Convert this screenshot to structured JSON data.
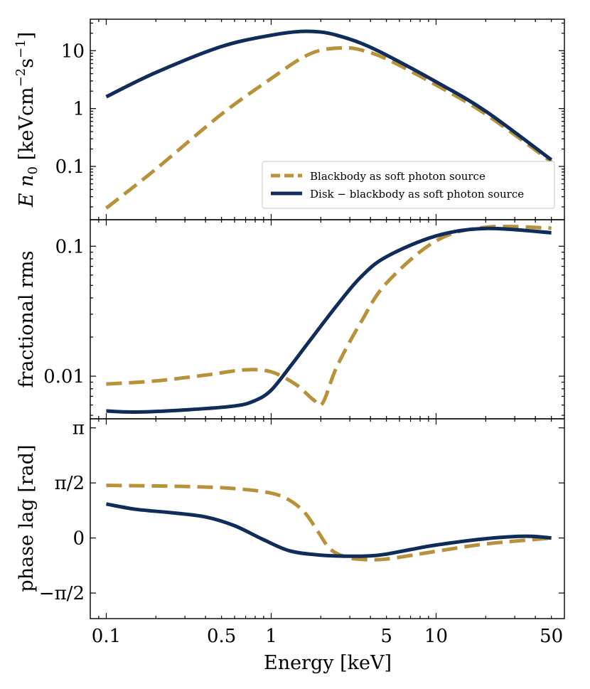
{
  "colors": {
    "blackbody": "#B8923A",
    "disk": "#0F2C5A"
  },
  "chart_data": [
    {
      "type": "line",
      "panel": "top",
      "ylabel": "E n_0 [keV cm^-2 s^-1]",
      "yscale": "log",
      "xscale": "log",
      "xlim": [
        0.08,
        60
      ],
      "ylim": [
        0.012,
        35
      ],
      "yticks": [
        0.1,
        1,
        10
      ],
      "ytick_labels": [
        "0.1",
        "1",
        "10"
      ],
      "legend": {
        "location": "lower-right",
        "entries": [
          "Blackbody as soft photon source",
          "Disk − blackbody as soft photon source"
        ]
      },
      "series": [
        {
          "name": "Blackbody as soft photon source",
          "style": "dashed",
          "x": [
            0.1,
            0.2,
            0.5,
            1,
            1.5,
            2,
            2.8,
            3.5,
            5,
            10,
            20,
            50
          ],
          "y": [
            0.019,
            0.09,
            0.8,
            3.3,
            7.2,
            10.2,
            11.2,
            10.3,
            7.2,
            2.55,
            0.8,
            0.12
          ]
        },
        {
          "name": "Disk − blackbody as soft photon source",
          "style": "solid",
          "x": [
            0.1,
            0.2,
            0.5,
            1,
            1.5,
            2,
            2.5,
            3.5,
            5,
            10,
            20,
            50
          ],
          "y": [
            1.6,
            4.2,
            11.8,
            18.5,
            21.5,
            21,
            18.5,
            13.5,
            8.4,
            2.9,
            0.9,
            0.13
          ]
        }
      ]
    },
    {
      "type": "line",
      "panel": "middle",
      "ylabel": "fractional rms",
      "yscale": "log",
      "xscale": "log",
      "xlim": [
        0.08,
        60
      ],
      "ylim": [
        0.0047,
        0.16
      ],
      "yticks": [
        0.01,
        0.1
      ],
      "ytick_labels": [
        "0.01",
        "0.1"
      ],
      "series": [
        {
          "name": "Blackbody as soft photon source",
          "style": "dashed",
          "x": [
            0.1,
            0.2,
            0.4,
            0.7,
            1,
            1.4,
            1.8,
            2.05,
            2.5,
            3.5,
            5,
            10,
            20,
            50
          ],
          "y": [
            0.0087,
            0.0092,
            0.0102,
            0.0112,
            0.0108,
            0.0087,
            0.0066,
            0.0062,
            0.0118,
            0.026,
            0.052,
            0.11,
            0.14,
            0.138
          ]
        },
        {
          "name": "Disk − blackbody as soft photon source",
          "style": "solid",
          "x": [
            0.1,
            0.15,
            0.3,
            0.6,
            0.8,
            1,
            1.3,
            1.7,
            2.5,
            3.5,
            5,
            10,
            20,
            50
          ],
          "y": [
            0.0054,
            0.0053,
            0.0055,
            0.0059,
            0.0065,
            0.0078,
            0.0118,
            0.0185,
            0.035,
            0.058,
            0.083,
            0.12,
            0.137,
            0.127
          ]
        }
      ]
    },
    {
      "type": "line",
      "panel": "bottom",
      "ylabel": "phase lag [rad]",
      "xlabel": "Energy [keV]",
      "xscale": "log",
      "yscale": "linear",
      "xlim": [
        0.08,
        60
      ],
      "ylim": [
        -2.3,
        3.4
      ],
      "ytick_values_in_pi": [
        -0.5,
        0,
        0.5,
        1
      ],
      "ytick_labels": [
        "−π/2",
        "0",
        "π/2",
        "π"
      ],
      "xticks": [
        0.1,
        0.5,
        1,
        5,
        10,
        50
      ],
      "xtick_labels": [
        "0.1",
        "0.5",
        "1",
        "5",
        "10",
        "50"
      ],
      "series": [
        {
          "name": "Blackbody as soft photon source",
          "style": "dashed",
          "x": [
            0.1,
            0.3,
            0.6,
            1,
            1.3,
            1.6,
            1.9,
            2.3,
            3,
            4,
            5,
            7,
            10,
            20,
            50
          ],
          "y": [
            1.5,
            1.47,
            1.41,
            1.28,
            1.07,
            0.72,
            0.22,
            -0.33,
            -0.57,
            -0.62,
            -0.6,
            -0.5,
            -0.38,
            -0.17,
            0.0
          ]
        },
        {
          "name": "Disk − blackbody as soft photon source",
          "style": "solid",
          "x": [
            0.1,
            0.15,
            0.25,
            0.4,
            0.6,
            0.9,
            1.3,
            2,
            3,
            4,
            5,
            7,
            10,
            20,
            35,
            50
          ],
          "y": [
            0.97,
            0.82,
            0.72,
            0.6,
            0.35,
            -0.05,
            -0.37,
            -0.49,
            -0.52,
            -0.51,
            -0.46,
            -0.33,
            -0.2,
            -0.02,
            0.05,
            0.0
          ]
        }
      ]
    }
  ]
}
